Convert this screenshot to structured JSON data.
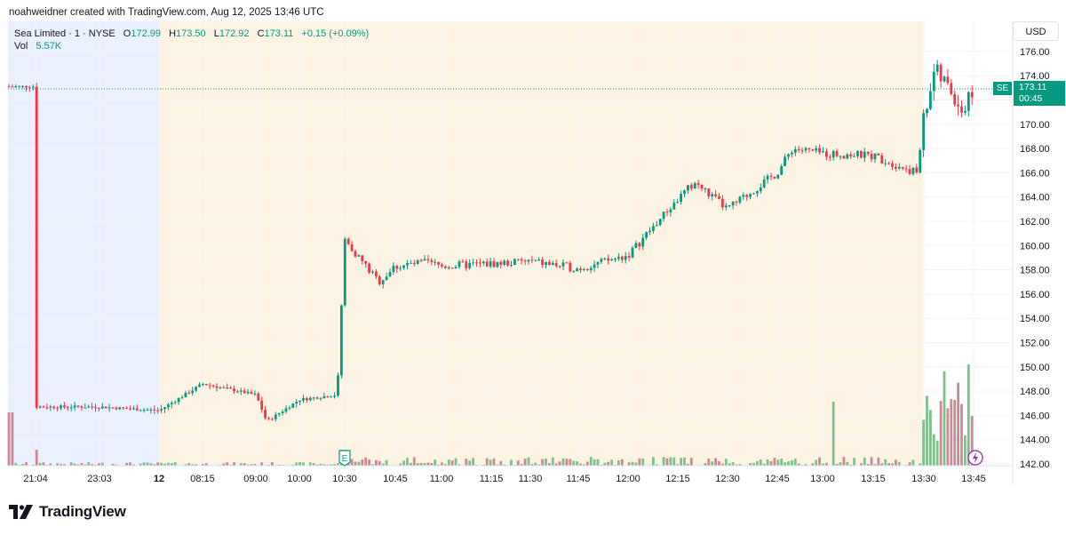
{
  "header": {
    "attribution": "noahweidner created with TradingView.com, Aug 12, 2025 13:46 UTC"
  },
  "legend": {
    "symbol": "Sea Limited · 1 · NYSE",
    "o_label": "O",
    "o_value": "172.99",
    "h_label": "H",
    "h_value": "173.50",
    "l_label": "L",
    "l_value": "172.92",
    "c_label": "C",
    "c_value": "173.11",
    "change": "+0.15 (+0.09%)",
    "vol_label": "Vol",
    "vol_value": "5.57K"
  },
  "currency": "USD",
  "last_price": {
    "symbol": "SE",
    "price": "173.11",
    "countdown": "00:45"
  },
  "event_marker": "E",
  "brand": "TradingView",
  "colors": {
    "up": "#089981",
    "down": "#f23645",
    "vol_up": "#7dc08a",
    "vol_down": "#c98a94",
    "premarket": "#fdf3e3",
    "overnight": "#eaf0fd"
  },
  "chart_data": {
    "type": "candlestick",
    "y_ticks": [
      "176.00",
      "174.00",
      "172.00",
      "170.00",
      "168.00",
      "166.00",
      "164.00",
      "162.00",
      "160.00",
      "158.00",
      "156.00",
      "154.00",
      "152.00",
      "150.00",
      "148.00",
      "146.00",
      "144.00",
      "142.00"
    ],
    "ylim": [
      142,
      177
    ],
    "x_ticks": [
      "21:04",
      "23:03",
      "12",
      "08:15",
      "09:00",
      "10:00",
      "10:30",
      "10:45",
      "11:00",
      "11:15",
      "11:30",
      "11:45",
      "12:00",
      "12:15",
      "12:30",
      "12:45",
      "13:00",
      "13:15",
      "13:30",
      "13:45"
    ],
    "sessions": [
      {
        "name": "overnight",
        "from": "21:04",
        "to": "08:15"
      },
      {
        "name": "pre-market",
        "from": "08:15",
        "to": "13:30"
      }
    ],
    "price_path": [
      [
        "21:04",
        146.7
      ],
      [
        "23:03",
        146.7
      ],
      [
        "12",
        146.4
      ],
      [
        "08:15",
        148.6
      ],
      [
        "09:00",
        147.7
      ],
      [
        "09:15",
        145.5
      ],
      [
        "10:00",
        147.3
      ],
      [
        "10:25",
        147.7
      ],
      [
        "10:30",
        160.5
      ],
      [
        "10:40",
        157.0
      ],
      [
        "10:45",
        158.3
      ],
      [
        "10:55",
        158.6
      ],
      [
        "11:00",
        158.3
      ],
      [
        "11:15",
        158.5
      ],
      [
        "11:30",
        158.7
      ],
      [
        "11:45",
        158.1
      ],
      [
        "12:00",
        159.2
      ],
      [
        "12:10",
        162.3
      ],
      [
        "12:15",
        163.8
      ],
      [
        "12:20",
        165.2
      ],
      [
        "12:30",
        163.0
      ],
      [
        "12:45",
        166.0
      ],
      [
        "12:50",
        168.0
      ],
      [
        "13:00",
        167.6
      ],
      [
        "13:15",
        167.4
      ],
      [
        "13:28",
        166.0
      ],
      [
        "13:30",
        170.5
      ],
      [
        "13:33",
        174.5
      ],
      [
        "13:38",
        172.8
      ],
      [
        "13:42",
        171.0
      ],
      [
        "13:45",
        173.11
      ]
    ]
  }
}
